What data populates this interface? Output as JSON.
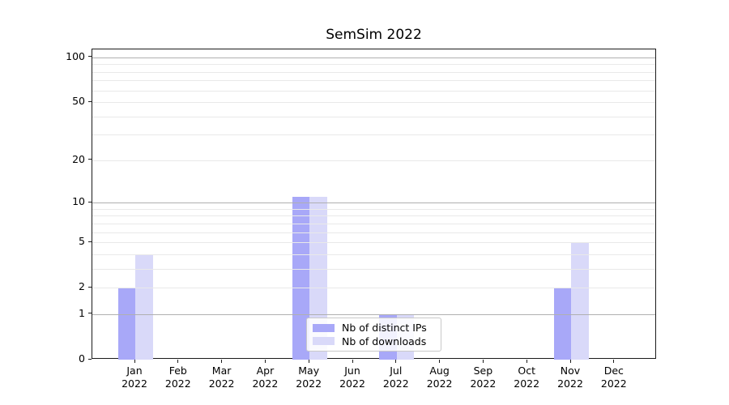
{
  "title": "SemSim 2022",
  "legend": {
    "items": [
      {
        "label": "Nb of distinct IPs",
        "color": "#a8a8f8"
      },
      {
        "label": "Nb of downloads",
        "color": "#d9d9f9"
      }
    ]
  },
  "chart_data": {
    "type": "bar",
    "title": "SemSim 2022",
    "categories": [
      "Jan 2022",
      "Feb 2022",
      "Mar 2022",
      "Apr 2022",
      "May 2022",
      "Jun 2022",
      "Jul 2022",
      "Aug 2022",
      "Sep 2022",
      "Oct 2022",
      "Nov 2022",
      "Dec 2022"
    ],
    "series": [
      {
        "name": "Nb of distinct IPs",
        "color": "#a8a8f8",
        "values": [
          2,
          0,
          0,
          0,
          11,
          0,
          1,
          0,
          0,
          0,
          2,
          0
        ]
      },
      {
        "name": "Nb of downloads",
        "color": "#d9d9f9",
        "values": [
          4,
          0,
          0,
          0,
          11,
          0,
          1,
          0,
          0,
          0,
          5,
          0
        ]
      }
    ],
    "yscale": "log1p",
    "yticks": [
      0,
      1,
      2,
      5,
      10,
      20,
      50,
      100
    ],
    "ylim": [
      0,
      113
    ],
    "xlabel": "",
    "ylabel": "",
    "grid": {
      "major_values": [
        1,
        10,
        100
      ],
      "minor_values": [
        2,
        3,
        4,
        5,
        6,
        7,
        8,
        9,
        20,
        30,
        40,
        50,
        60,
        70,
        80,
        90
      ],
      "major_color": "#b0b0b0",
      "minor_color": "#e9e9e9"
    },
    "legend_position": "lower center inside plot"
  }
}
